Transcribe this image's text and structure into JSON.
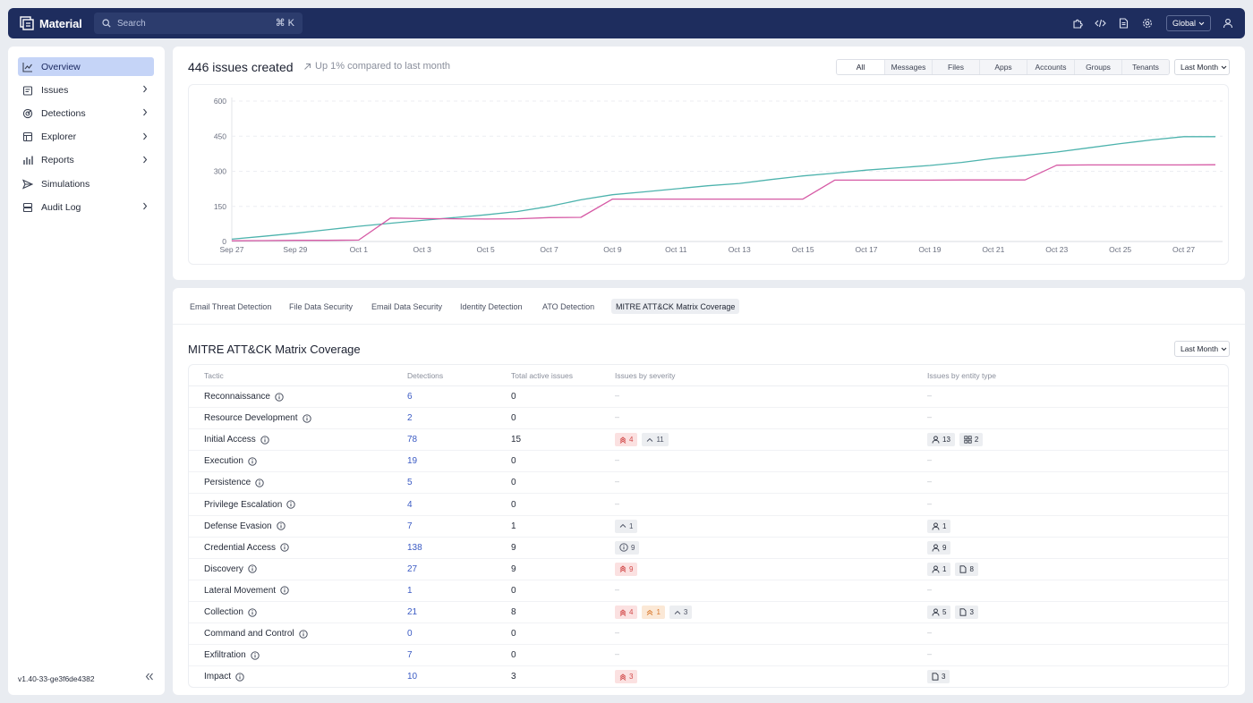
{
  "app": {
    "brand": "Material"
  },
  "search": {
    "placeholder": "Search",
    "shortcut": "⌘ K"
  },
  "topbar": {
    "icons": [
      "puzzle-icon",
      "code-icon",
      "document-icon",
      "gear-icon",
      "user-icon"
    ],
    "scope": "Global"
  },
  "sidebar": {
    "items": [
      {
        "name": "overview",
        "label": "Overview",
        "icon": "chart-line-icon",
        "active": true,
        "chevron": false
      },
      {
        "name": "issues",
        "label": "Issues",
        "icon": "issues-icon",
        "active": false,
        "chevron": true
      },
      {
        "name": "detections",
        "label": "Detections",
        "icon": "radar-icon",
        "active": false,
        "chevron": true
      },
      {
        "name": "explorer",
        "label": "Explorer",
        "icon": "explorer-icon",
        "active": false,
        "chevron": true
      },
      {
        "name": "reports",
        "label": "Reports",
        "icon": "bar-chart-icon",
        "active": false,
        "chevron": true
      },
      {
        "name": "simulations",
        "label": "Simulations",
        "icon": "send-icon",
        "active": false,
        "chevron": false
      },
      {
        "name": "audit-log",
        "label": "Audit Log",
        "icon": "server-icon",
        "active": false,
        "chevron": true
      }
    ],
    "version": "v1.40-33-ge3f6de4382"
  },
  "summary": {
    "title": "446 issues created",
    "subtitle": "Up 1% compared to last month",
    "filters": [
      "All",
      "Messages",
      "Files",
      "Apps",
      "Accounts",
      "Groups",
      "Tenants"
    ],
    "active_filter": "All",
    "range": "Last Month"
  },
  "chart_data": {
    "type": "line",
    "x": [
      "Sep 27",
      "Sep 28",
      "Sep 29",
      "Sep 30",
      "Oct 1",
      "Oct 2",
      "Oct 3",
      "Oct 4",
      "Oct 5",
      "Oct 6",
      "Oct 7",
      "Oct 8",
      "Oct 9",
      "Oct 10",
      "Oct 11",
      "Oct 12",
      "Oct 13",
      "Oct 14",
      "Oct 15",
      "Oct 16",
      "Oct 17",
      "Oct 18",
      "Oct 19",
      "Oct 20",
      "Oct 21",
      "Oct 22",
      "Oct 23",
      "Oct 24",
      "Oct 25",
      "Oct 26",
      "Oct 27",
      "Oct 28"
    ],
    "xticks": [
      "Sep 27",
      "Sep 29",
      "Oct 1",
      "Oct 3",
      "Oct 5",
      "Oct 7",
      "Oct 9",
      "Oct 11",
      "Oct 13",
      "Oct 15",
      "Oct 17",
      "Oct 19",
      "Oct 21",
      "Oct 23",
      "Oct 25",
      "Oct 27"
    ],
    "yticks": [
      0,
      150,
      300,
      450,
      600
    ],
    "ylim": [
      0,
      600
    ],
    "grid": true,
    "series": [
      {
        "color": "#4db3ad",
        "values": [
          10,
          22,
          35,
          50,
          65,
          78,
          90,
          102,
          114,
          128,
          150,
          178,
          200,
          212,
          225,
          238,
          248,
          265,
          280,
          292,
          305,
          315,
          325,
          338,
          355,
          368,
          382,
          400,
          418,
          434,
          448,
          448
        ]
      },
      {
        "color": "#d65aa5",
        "values": [
          3,
          4,
          5,
          5,
          6,
          100,
          98,
          97,
          96,
          97,
          102,
          103,
          181,
          181,
          181,
          181,
          181,
          181,
          181,
          262,
          262,
          262,
          262,
          263,
          263,
          263,
          326,
          327,
          327,
          327,
          327,
          328
        ]
      }
    ]
  },
  "tabs": [
    "Email Threat Detection",
    "File Data Security",
    "Email Data Security",
    "Identity Detection",
    "ATO Detection",
    "MITRE ATT&CK Matrix Coverage"
  ],
  "active_tab": "MITRE ATT&CK Matrix Coverage",
  "matrix": {
    "title": "MITRE ATT&CK Matrix Coverage",
    "range": "Last Month",
    "columns": [
      "Tactic",
      "Detections",
      "Total active issues",
      "Issues by severity",
      "Issues by entity type"
    ],
    "rows": [
      {
        "tactic": "Reconnaissance",
        "detections": "6",
        "active": "0",
        "severity": [],
        "entities": []
      },
      {
        "tactic": "Resource Development",
        "detections": "2",
        "active": "0",
        "severity": [],
        "entities": []
      },
      {
        "tactic": "Initial Access",
        "detections": "78",
        "active": "15",
        "severity": [
          {
            "level": "high",
            "count": "4"
          },
          {
            "level": "low",
            "count": "11"
          }
        ],
        "entities": [
          {
            "type": "user",
            "count": "13"
          },
          {
            "type": "apps",
            "count": "2"
          }
        ]
      },
      {
        "tactic": "Execution",
        "detections": "19",
        "active": "0",
        "severity": [],
        "entities": []
      },
      {
        "tactic": "Persistence",
        "detections": "5",
        "active": "0",
        "severity": [],
        "entities": []
      },
      {
        "tactic": "Privilege Escalation",
        "detections": "4",
        "active": "0",
        "severity": [],
        "entities": []
      },
      {
        "tactic": "Defense Evasion",
        "detections": "7",
        "active": "1",
        "severity": [
          {
            "level": "low",
            "count": "1"
          }
        ],
        "entities": [
          {
            "type": "user",
            "count": "1"
          }
        ]
      },
      {
        "tactic": "Credential Access",
        "detections": "138",
        "active": "9",
        "severity": [
          {
            "level": "info",
            "count": "9"
          }
        ],
        "entities": [
          {
            "type": "user",
            "count": "9"
          }
        ]
      },
      {
        "tactic": "Discovery",
        "detections": "27",
        "active": "9",
        "severity": [
          {
            "level": "high",
            "count": "9"
          }
        ],
        "entities": [
          {
            "type": "user",
            "count": "1"
          },
          {
            "type": "file",
            "count": "8"
          }
        ]
      },
      {
        "tactic": "Lateral Movement",
        "detections": "1",
        "active": "0",
        "severity": [],
        "entities": []
      },
      {
        "tactic": "Collection",
        "detections": "21",
        "active": "8",
        "severity": [
          {
            "level": "high",
            "count": "4"
          },
          {
            "level": "med",
            "count": "1"
          },
          {
            "level": "low",
            "count": "3"
          }
        ],
        "entities": [
          {
            "type": "user",
            "count": "5"
          },
          {
            "type": "file",
            "count": "3"
          }
        ]
      },
      {
        "tactic": "Command and Control",
        "detections": "0",
        "active": "0",
        "severity": [],
        "entities": []
      },
      {
        "tactic": "Exfiltration",
        "detections": "7",
        "active": "0",
        "severity": [],
        "entities": []
      },
      {
        "tactic": "Impact",
        "detections": "10",
        "active": "3",
        "severity": [
          {
            "level": "high",
            "count": "3"
          }
        ],
        "entities": [
          {
            "type": "file",
            "count": "3"
          }
        ]
      }
    ],
    "empty": "–"
  }
}
